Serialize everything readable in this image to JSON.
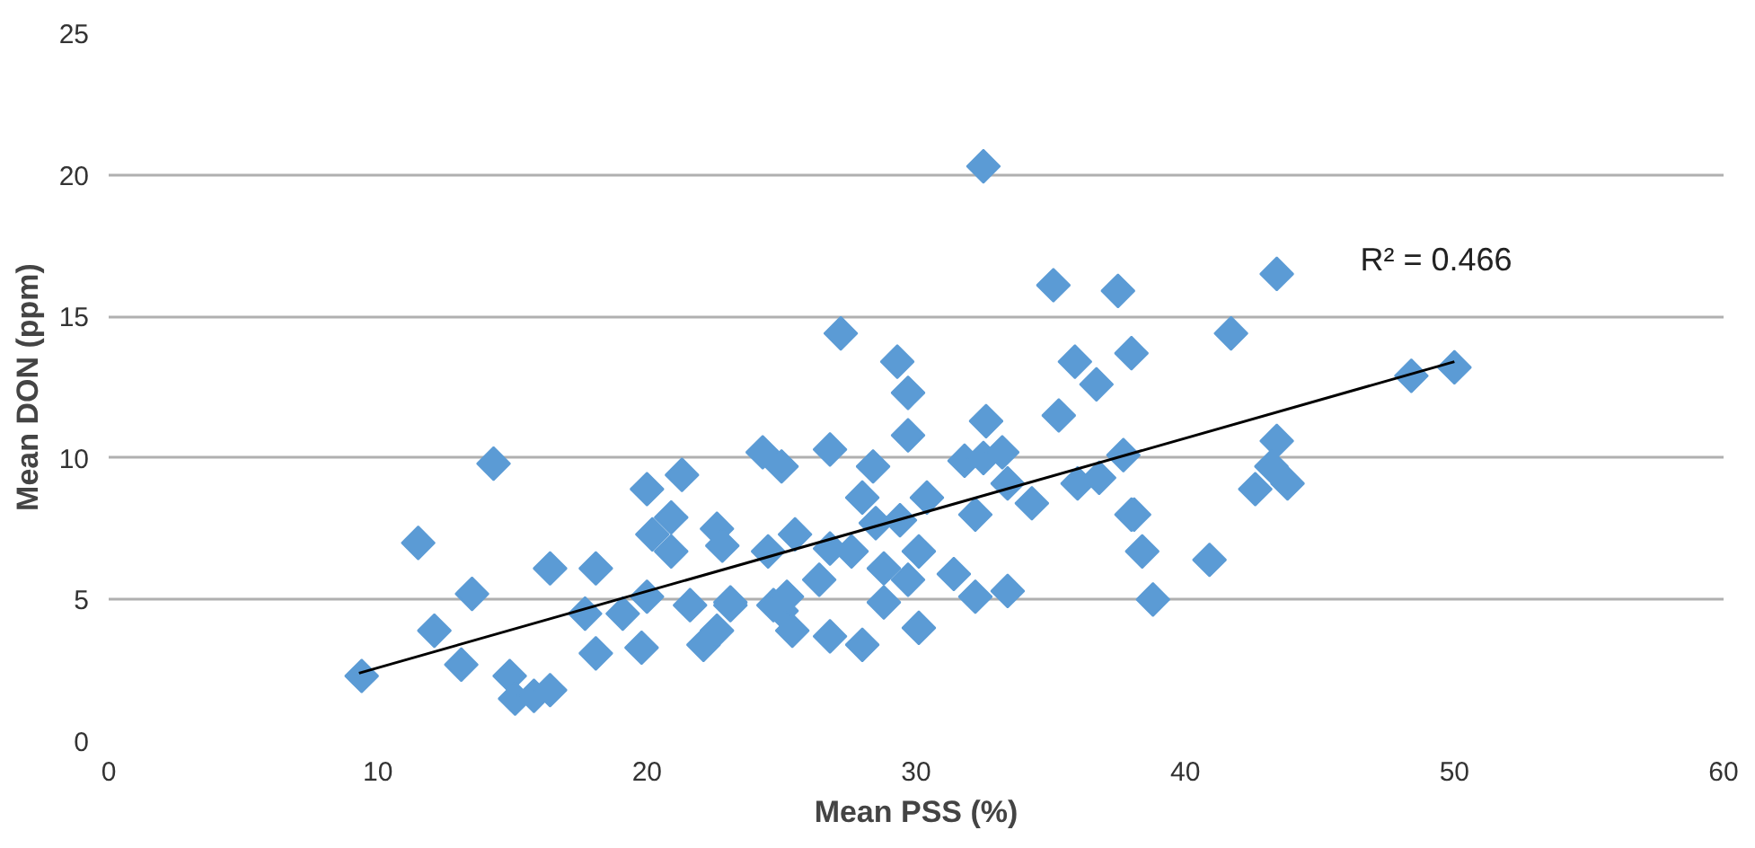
{
  "chart_data": {
    "type": "scatter",
    "xlabel": "Mean PSS (%)",
    "ylabel": "Mean DON (ppm)",
    "xlim": [
      0,
      60
    ],
    "ylim": [
      0,
      25
    ],
    "xticks": [
      0,
      10,
      20,
      30,
      40,
      50,
      60
    ],
    "yticks": [
      0,
      5,
      10,
      15,
      20,
      25
    ],
    "grid": "y",
    "marker": "diamond",
    "annotations": [
      "R² = 0.466"
    ],
    "series": [
      {
        "color": "#5b9bd5",
        "x": [
          9.4,
          11.5,
          14.3,
          16.4,
          18.1,
          12.1,
          13.5,
          13.1,
          14.9,
          15.1,
          15.8,
          16.4,
          20.0,
          21.3,
          20.9,
          20.2,
          20.9,
          22.6,
          22.8,
          24.3,
          25.0,
          24.5,
          17.7,
          18.1,
          19.1,
          20.0,
          19.8,
          21.6,
          23.1,
          22.1,
          25.0,
          25.4,
          32.5,
          35.1,
          37.5,
          27.2,
          29.3,
          29.7,
          29.7,
          35.9,
          38.0,
          36.7,
          35.3,
          32.6,
          26.8,
          28.4,
          31.8,
          32.5,
          33.2,
          37.7,
          28.0,
          30.4,
          33.4,
          34.3,
          36.0,
          36.8,
          38.1,
          38.4,
          38.8,
          32.2,
          29.4,
          28.5,
          25.5,
          26.8,
          27.6,
          30.1,
          26.4,
          28.8,
          29.7,
          31.4,
          32.2,
          33.4,
          24.7,
          25.2,
          26.8,
          28.0,
          30.1,
          28.8,
          22.6,
          23.1,
          43.4,
          41.7,
          48.4,
          50.0,
          43.4,
          43.2,
          43.8,
          42.6,
          38.0,
          40.9
        ],
        "values": [
          2.3,
          7.0,
          9.8,
          6.1,
          6.1,
          3.9,
          5.2,
          2.7,
          2.3,
          1.5,
          1.6,
          1.8,
          8.9,
          9.4,
          7.9,
          7.3,
          6.7,
          7.5,
          6.9,
          10.2,
          9.7,
          6.7,
          4.5,
          3.1,
          4.5,
          5.1,
          3.3,
          4.8,
          4.8,
          3.4,
          4.6,
          3.9,
          20.3,
          16.1,
          15.9,
          14.4,
          13.4,
          12.3,
          10.8,
          13.4,
          13.7,
          12.6,
          11.5,
          11.3,
          10.3,
          9.7,
          9.9,
          10.0,
          10.2,
          10.1,
          8.6,
          8.6,
          9.1,
          8.4,
          9.1,
          9.3,
          8.0,
          6.7,
          5.0,
          8.0,
          7.8,
          7.7,
          7.3,
          6.8,
          6.7,
          6.7,
          5.7,
          6.1,
          5.7,
          5.9,
          5.1,
          5.3,
          4.8,
          5.1,
          3.7,
          3.4,
          4.0,
          4.9,
          3.9,
          4.9,
          16.5,
          14.4,
          12.9,
          13.2,
          10.6,
          9.7,
          9.1,
          8.9,
          8.0,
          6.4
        ]
      },
      {
        "type": "line",
        "marker": "none",
        "color": "#000000",
        "x": [
          9.3,
          50.0
        ],
        "values": [
          2.4,
          13.4
        ]
      }
    ]
  }
}
